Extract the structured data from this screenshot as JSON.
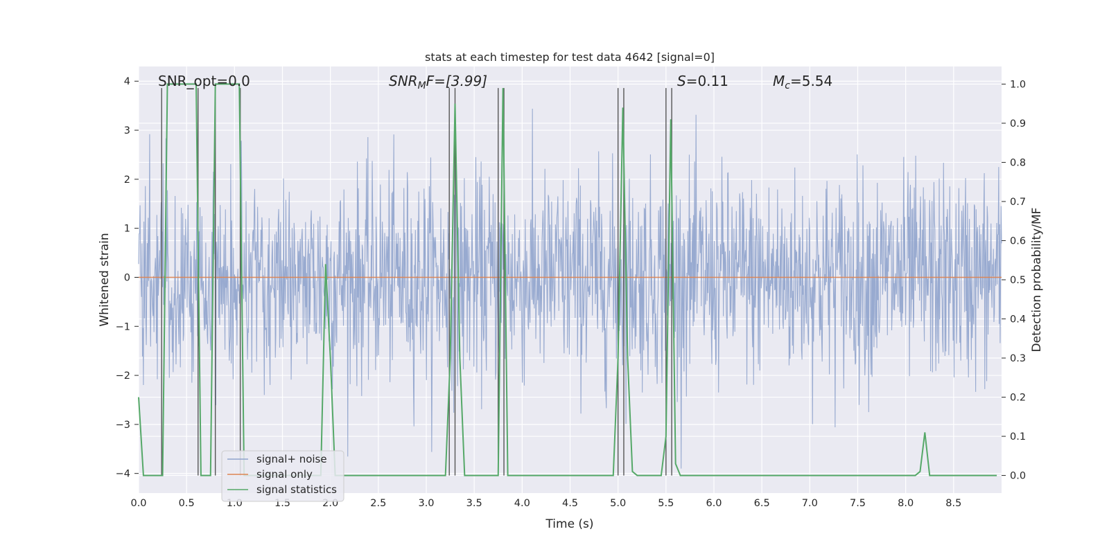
{
  "chart_data": {
    "type": "line",
    "title": "stats at each timestep for test data 4642 [signal=0]",
    "xlabel": "Time (s)",
    "ylabel_left": "Whitened strain",
    "ylabel_right": "Detection probability/MF",
    "xlim": [
      0,
      9.0
    ],
    "ylim_left": [
      -4.4,
      4.3
    ],
    "ylim_right": [
      -0.045,
      1.045
    ],
    "xticks": [
      0.0,
      0.5,
      1.0,
      1.5,
      2.0,
      2.5,
      3.0,
      3.5,
      4.0,
      4.5,
      5.0,
      5.5,
      6.0,
      6.5,
      7.0,
      7.5,
      8.0,
      8.5
    ],
    "xtick_labels": [
      "0.0",
      "0.5",
      "1.0",
      "1.5",
      "2.0",
      "2.5",
      "3.0",
      "3.5",
      "4.0",
      "4.5",
      "5.0",
      "5.5",
      "6.0",
      "6.5",
      "7.0",
      "7.5",
      "8.0",
      "8.5"
    ],
    "yticks_left": [
      -4,
      -3,
      -2,
      -1,
      0,
      1,
      2,
      3,
      4
    ],
    "ytick_labels_left": [
      "−4",
      "−3",
      "−2",
      "−1",
      "0",
      "1",
      "2",
      "3",
      "4"
    ],
    "yticks_right": [
      0.0,
      0.1,
      0.2,
      0.3,
      0.4,
      0.5,
      0.6,
      0.7,
      0.8,
      0.9,
      1.0
    ],
    "ytick_labels_right": [
      "0.0",
      "0.1",
      "0.2",
      "0.3",
      "0.4",
      "0.5",
      "0.6",
      "0.7",
      "0.8",
      "0.9",
      "1.0"
    ],
    "grid": true,
    "annotations": {
      "snr_opt": "SNR_opt=0.0",
      "snr_mf_base": "SNR",
      "snr_mf_sub": "M",
      "snr_mf_rest": "F=[3.99]",
      "s_base": "S",
      "s_rest": "=0.11",
      "mc_base": "M",
      "mc_sub": "c",
      "mc_rest": "=5.54"
    },
    "legend": {
      "placement": "lower-left",
      "entries": [
        "signal+ noise",
        "signal only",
        "signal statistics"
      ]
    },
    "colors": {
      "noise": "#8fa3cc",
      "signal_only": "#dd8452",
      "statistics": "#55a868",
      "vlines": "#555555",
      "background": "#eaeaf2",
      "grid": "#ffffff"
    },
    "series": [
      {
        "name": "signal+ noise",
        "axis": "left",
        "description_level": "noise",
        "envelope_std": 1.0,
        "x_range": [
          0,
          9.0
        ]
      },
      {
        "name": "signal only",
        "axis": "left",
        "x": [
          0,
          9.0
        ],
        "y": [
          0,
          0
        ]
      },
      {
        "name": "signal statistics",
        "axis": "right",
        "x": [
          0.0,
          0.05,
          0.1,
          0.15,
          0.2,
          0.25,
          0.3,
          0.35,
          0.4,
          0.45,
          0.5,
          0.55,
          0.6,
          0.65,
          0.7,
          0.75,
          0.8,
          0.85,
          0.9,
          0.95,
          1.0,
          1.05,
          1.1,
          1.15,
          1.2,
          1.9,
          1.95,
          2.0,
          2.05,
          2.1,
          2.4,
          3.2,
          3.25,
          3.3,
          3.35,
          3.4,
          3.7,
          3.75,
          3.8,
          3.85,
          3.9,
          4.95,
          5.0,
          5.05,
          5.1,
          5.15,
          5.2,
          5.25,
          5.45,
          5.5,
          5.55,
          5.6,
          5.65,
          6.85,
          6.9,
          6.95,
          8.1,
          8.15,
          8.2,
          8.25,
          8.95
        ],
        "y": [
          0.2,
          0.0,
          0.0,
          0.0,
          0.0,
          0.0,
          1.0,
          1.0,
          1.0,
          1.0,
          1.0,
          1.0,
          1.0,
          0.0,
          0.0,
          0.0,
          1.0,
          1.0,
          1.0,
          1.0,
          1.0,
          1.0,
          0.0,
          0.0,
          0.0,
          0.0,
          0.54,
          0.3,
          0.0,
          0.0,
          0.0,
          0.0,
          0.3,
          0.95,
          0.3,
          0.0,
          0.0,
          0.0,
          0.99,
          0.0,
          0.0,
          0.0,
          0.3,
          0.94,
          0.3,
          0.01,
          0.0,
          0.0,
          0.0,
          0.1,
          0.91,
          0.03,
          0.0,
          0.0,
          0.0,
          0.0,
          0.0,
          0.01,
          0.11,
          0.0,
          0.0
        ]
      }
    ],
    "vertical_markers": [
      0.24,
      0.62,
      0.8,
      1.06,
      3.24,
      3.3,
      3.75,
      3.81,
      5.0,
      5.06,
      5.5,
      5.56
    ]
  }
}
